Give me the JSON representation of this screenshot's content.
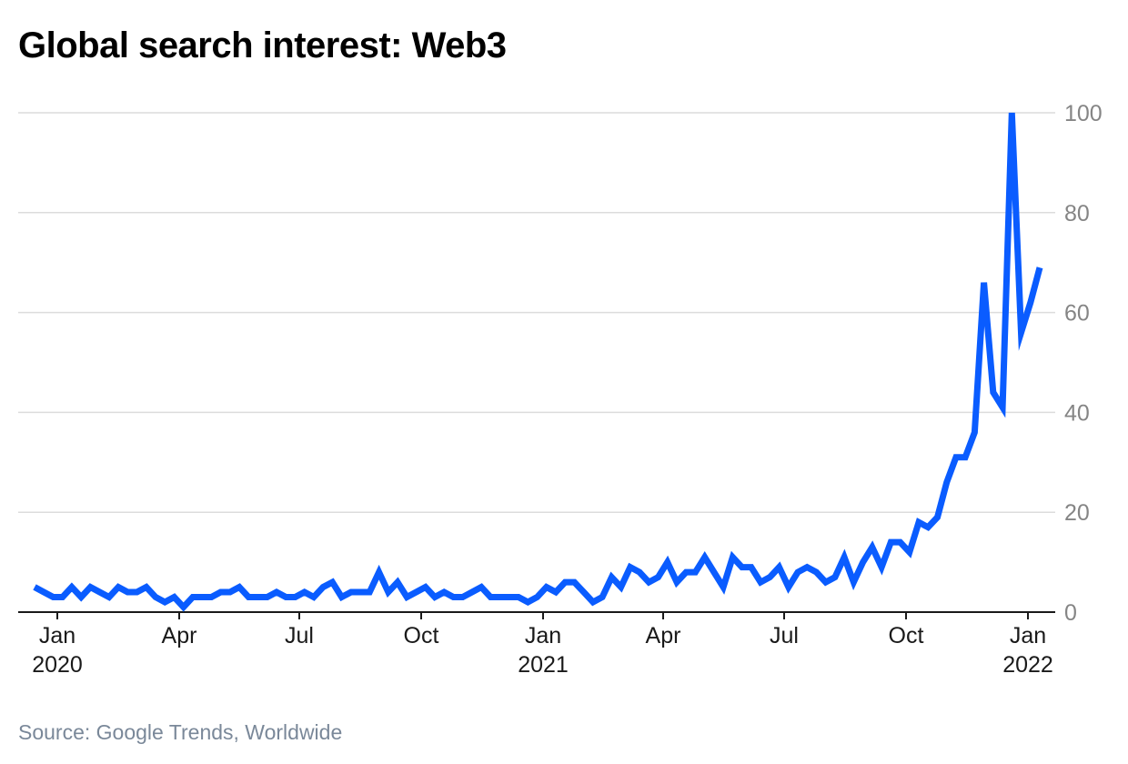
{
  "title": "Global search interest: Web3",
  "source": "Source: Google Trends, Worldwide",
  "chart_data": {
    "type": "line",
    "title": "Global search interest: Web3",
    "xlabel": "",
    "ylabel": "",
    "ylim": [
      0,
      100
    ],
    "yticks": [
      0,
      20,
      40,
      60,
      80,
      100
    ],
    "y_axis_side": "right",
    "grid": "horizontal",
    "line_color": "#0a5cff",
    "x_ticks": [
      {
        "line1": "Jan",
        "line2": "2020"
      },
      {
        "line1": "Apr",
        "line2": ""
      },
      {
        "line1": "Jul",
        "line2": ""
      },
      {
        "line1": "Oct",
        "line2": ""
      },
      {
        "line1": "Jan",
        "line2": "2021"
      },
      {
        "line1": "Apr",
        "line2": ""
      },
      {
        "line1": "Jul",
        "line2": ""
      },
      {
        "line1": "Oct",
        "line2": ""
      },
      {
        "line1": "Jan",
        "line2": "2022"
      }
    ],
    "series": [
      {
        "values": [
          5,
          4,
          3,
          3,
          5,
          3,
          5,
          4,
          3,
          5,
          4,
          4,
          5,
          3,
          2,
          3,
          1,
          3,
          3,
          3,
          4,
          4,
          5,
          3,
          3,
          3,
          4,
          3,
          3,
          4,
          3,
          5,
          6,
          3,
          4,
          4,
          4,
          8,
          4,
          6,
          3,
          4,
          5,
          3,
          4,
          3,
          3,
          4,
          5,
          3,
          3,
          3,
          3,
          2,
          3,
          5,
          4,
          6,
          6,
          4,
          2,
          3,
          7,
          5,
          9,
          8,
          6,
          7,
          10,
          6,
          8,
          8,
          11,
          8,
          5,
          11,
          9,
          9,
          6,
          7,
          9,
          5,
          8,
          9,
          8,
          6,
          7,
          11,
          6,
          10,
          13,
          9,
          14,
          14,
          12,
          18,
          17,
          19,
          26,
          31,
          31,
          36,
          66,
          44,
          41,
          100,
          56,
          62,
          69
        ]
      }
    ]
  }
}
